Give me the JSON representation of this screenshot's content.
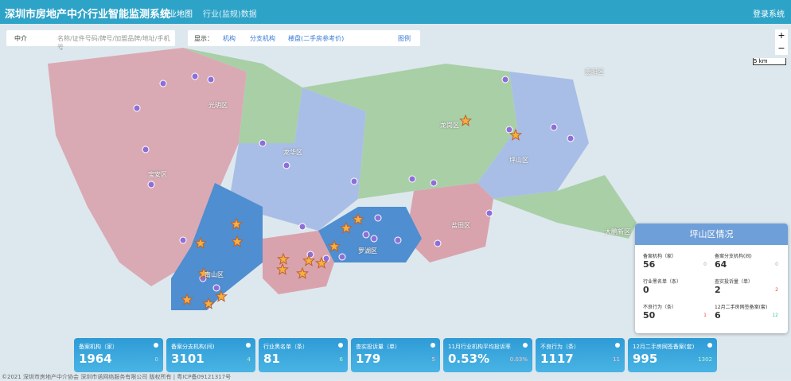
{
  "header": {
    "title": "深圳市房地产中介行业智能监测系统",
    "nav": [
      "行业地图",
      "行业(监规)数据"
    ],
    "login": "登录系统"
  },
  "search": {
    "type": "中介",
    "placeholder": "名称/证件号码/牌号/加盟品牌/地址/手机号"
  },
  "display": {
    "label": "显示：",
    "options": [
      "机构",
      "分支机构",
      "楼盘(二手房参考价)"
    ],
    "legend": "图例"
  },
  "map": {
    "labels": [
      "光明区",
      "龙华区",
      "宝安区",
      "龙岗区",
      "坪山区",
      "盐田区",
      "南山区",
      "罗湖区",
      "惠阳区",
      "大鹏新区"
    ],
    "scale": "5 km",
    "zoom_in": "+",
    "zoom_out": "−"
  },
  "panel": {
    "title": "坪山区情况",
    "items": [
      {
        "label": "备案机构（家）",
        "value": "56",
        "change": "0"
      },
      {
        "label": "备案分支机构(间)",
        "value": "64",
        "change": "0"
      },
      {
        "label": "行业黑名单（条）",
        "value": "0",
        "change": ""
      },
      {
        "label": "查实投诉量（单）",
        "value": "2",
        "change": "2"
      },
      {
        "label": "不良行为（条）",
        "value": "50",
        "change": "1"
      },
      {
        "label": "12月二手房网签备案(套)",
        "value": "6",
        "change": "12"
      }
    ]
  },
  "cards": [
    {
      "label": "备案机构（家）",
      "value": "1964",
      "change": "0"
    },
    {
      "label": "备案分支机构(间)",
      "value": "3101",
      "change": "4"
    },
    {
      "label": "行业黑名单（条）",
      "value": "81",
      "change": "6"
    },
    {
      "label": "查实投诉量（单）",
      "value": "179",
      "change": "5"
    },
    {
      "label": "11月行业机构平均投诉率",
      "value": "0.53%",
      "change": "0.03%"
    },
    {
      "label": "不良行为（条）",
      "value": "1117",
      "change": "11"
    },
    {
      "label": "12月二手房网签备案(套)",
      "value": "995",
      "change": "1302"
    }
  ],
  "footer": "©2021 深圳市房地产中介协会 深圳市诺网络服务有限公司 版权所有 | 粤ICP备09121317号"
}
